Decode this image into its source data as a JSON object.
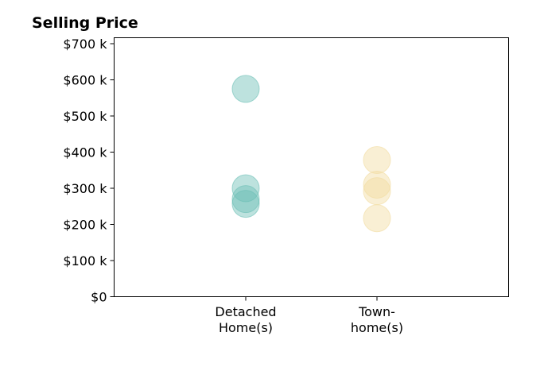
{
  "chart_data": {
    "type": "scatter",
    "title": "Selling Price",
    "xlabel": "",
    "ylabel": "",
    "categories": [
      "Detached\nHome(s)",
      "Town-\nhome(s)"
    ],
    "ylim": [
      0,
      720000
    ],
    "y_ticks": [
      {
        "value": 0,
        "label": "$0"
      },
      {
        "value": 100000,
        "label": "$100 k"
      },
      {
        "value": 200000,
        "label": "$200 k"
      },
      {
        "value": 300000,
        "label": "$300 k"
      },
      {
        "value": 400000,
        "label": "$400 k"
      },
      {
        "value": 500000,
        "label": "$500 k"
      },
      {
        "value": 600000,
        "label": "$600 k"
      },
      {
        "value": 700000,
        "label": "$700 k"
      }
    ],
    "grid": false,
    "legend": "none",
    "series": [
      {
        "category": "Detached\nHome(s)",
        "color": "#6dbfb5",
        "values": [
          575000,
          300000,
          270000,
          257000
        ]
      },
      {
        "category": "Town-\nhome(s)",
        "color": "#f2dca0",
        "values": [
          378000,
          310000,
          292000,
          217000
        ]
      }
    ]
  }
}
